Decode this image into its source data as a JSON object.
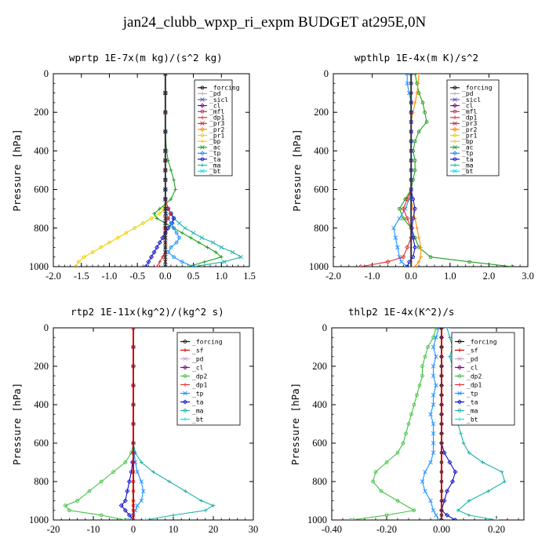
{
  "title": "jan24_clubb_wpxp_ri_expm  BUDGET at295E,0N",
  "colors": {
    "_forcing": "#111111",
    "_pd": "#c8a2c8",
    "_sicl": "#5555cc",
    "_cl": "#800080",
    "_mfl": "#b03060",
    "_dp1": "#e03030",
    "_dp2": "#40c040",
    "_pr3": "#d03040",
    "_pr2": "#ff8c00",
    "_pr1": "#f0d000",
    "_bp": "#f0c040",
    "_ac": "#20a020",
    "_tp": "#1e90ff",
    "_ta": "#1010cc",
    "_ma": "#20b2aa",
    "_bt": "#00e5ee",
    "_sf": "#cc0000"
  },
  "chart_data": [
    {
      "type": "line",
      "title": "wprtp  1E-7x(m kg)/(s^2 kg)",
      "ylabel": "Pressure [hPa]",
      "xlim": [
        -2.0,
        1.5
      ],
      "ylim": [
        1000,
        0
      ],
      "xticks": [
        "-2.0",
        "-1.5",
        "-1.0",
        "-0.5",
        "0.0",
        "0.5",
        "1.0",
        "1.5"
      ],
      "yticks": [
        "0",
        "200",
        "400",
        "600",
        "800",
        "1000"
      ],
      "legend": [
        "_forcing",
        "_pd",
        "_sicl",
        "_cl",
        "_mfl",
        "_dp1",
        "_pr3",
        "_pr2",
        "_pr1",
        "_bp",
        "_ac",
        "_tp",
        "_ta",
        "_ma",
        "_bt"
      ],
      "y": [
        0,
        100,
        200,
        300,
        400,
        450,
        500,
        550,
        600,
        650,
        700,
        725,
        750,
        775,
        800,
        825,
        850,
        875,
        900,
        925,
        950,
        975,
        1000
      ],
      "series": [
        {
          "name": "_pr1",
          "values": [
            0,
            0,
            0,
            0,
            0,
            0,
            0,
            0,
            0,
            0,
            -0.02,
            -0.1,
            -0.25,
            -0.4,
            -0.55,
            -0.7,
            -0.85,
            -1.0,
            -1.15,
            -1.3,
            -1.45,
            -1.55,
            -1.6
          ]
        },
        {
          "name": "_ac",
          "values": [
            0,
            0,
            0,
            0,
            0.02,
            0.05,
            0.1,
            0.15,
            0.18,
            0.1,
            -0.1,
            -0.2,
            -0.15,
            0.0,
            0.15,
            0.3,
            0.45,
            0.6,
            0.75,
            0.9,
            1.0,
            0.7,
            0.4
          ]
        },
        {
          "name": "_ma",
          "values": [
            0,
            0,
            0,
            0,
            0,
            0,
            0,
            0,
            0,
            0,
            0.05,
            0.1,
            0.15,
            0.25,
            0.35,
            0.5,
            0.65,
            0.85,
            1.0,
            1.2,
            1.35,
            1.05,
            0.5
          ]
        },
        {
          "name": "_ta",
          "values": [
            0,
            0,
            0,
            0,
            0,
            0,
            0,
            0,
            0,
            0,
            0.05,
            0.1,
            0.15,
            0.12,
            0.05,
            0.0,
            -0.05,
            -0.1,
            -0.15,
            -0.2,
            -0.25,
            -0.3,
            -0.35
          ]
        },
        {
          "name": "_tp",
          "values": [
            0,
            0,
            0,
            0,
            0,
            0,
            0,
            0,
            0,
            0,
            0,
            0.02,
            0.05,
            0.1,
            0.15,
            0.2,
            0.25,
            0.2,
            0.1,
            0.05,
            0.15,
            0.3,
            0.5
          ]
        },
        {
          "name": "_dp1",
          "values": [
            0,
            0,
            0,
            0,
            0,
            0,
            0,
            0,
            0,
            0,
            0.05,
            0.1,
            0.05,
            0.0,
            -0.02,
            0,
            0,
            0,
            0,
            0,
            -0.05,
            -0.1,
            -0.15
          ]
        },
        {
          "name": "_forcing",
          "values": [
            0,
            0,
            0,
            0,
            0,
            0,
            0,
            0,
            0,
            0,
            0,
            0,
            0,
            0,
            0,
            0,
            0,
            0,
            0,
            0,
            0,
            0,
            0
          ]
        }
      ]
    },
    {
      "type": "line",
      "title": "wpthlp  1E-4x(m K)/s^2",
      "ylabel": "Pressure [hPa]",
      "xlim": [
        -2.0,
        3.0
      ],
      "ylim": [
        1000,
        0
      ],
      "xticks": [
        "-2.0",
        "-1.0",
        "0.0",
        "1.0",
        "2.0",
        "3.0"
      ],
      "yticks": [
        "0",
        "200",
        "400",
        "600",
        "800",
        "1000"
      ],
      "legend": [
        "_forcing",
        "_pd",
        "_sicl",
        "_cl",
        "_mfl",
        "_dp1",
        "_pr3",
        "_pr2",
        "_pr1",
        "_bp",
        "_ac",
        "_tp",
        "_ta",
        "_ma",
        "_bt"
      ],
      "y": [
        0,
        50,
        100,
        150,
        200,
        250,
        300,
        350,
        400,
        450,
        500,
        550,
        600,
        650,
        700,
        750,
        800,
        850,
        900,
        950,
        975,
        1000
      ],
      "series": [
        {
          "name": "_ac",
          "values": [
            0.1,
            0.15,
            0.2,
            0.3,
            0.35,
            0.4,
            0.2,
            0.1,
            0.05,
            0.1,
            0.1,
            0.05,
            0.0,
            -0.15,
            -0.3,
            -0.2,
            0.0,
            0.1,
            0.2,
            0.5,
            1.5,
            2.6
          ]
        },
        {
          "name": "_pr2",
          "values": [
            0.2,
            0.18,
            0.15,
            0.1,
            0.05,
            0,
            0,
            0,
            0,
            0,
            0,
            0,
            0,
            0,
            0.05,
            0.1,
            0.15,
            0.2,
            0.25,
            0.25,
            0.2,
            0.1
          ]
        },
        {
          "name": "_tp",
          "values": [
            -0.1,
            -0.1,
            -0.05,
            0,
            0,
            0,
            0,
            0,
            0,
            0,
            0,
            0,
            0,
            -0.05,
            -0.15,
            -0.3,
            -0.45,
            -0.4,
            -0.35,
            -0.3,
            -0.25,
            -0.1
          ]
        },
        {
          "name": "_dp1",
          "values": [
            0,
            0,
            0,
            0,
            0,
            0,
            0,
            0,
            0,
            0,
            0,
            0,
            0,
            -0.1,
            -0.2,
            -0.1,
            0,
            0,
            -0.1,
            -0.2,
            -0.6,
            -1.3
          ]
        },
        {
          "name": "_ta",
          "values": [
            0,
            0,
            0,
            0,
            0,
            0,
            0,
            0,
            0,
            0,
            0,
            0,
            0,
            0.05,
            0.1,
            0.05,
            0.02,
            0.05,
            0.1,
            0.05,
            -0.05,
            -0.1
          ]
        },
        {
          "name": "_pd",
          "values": [
            0,
            0,
            0,
            0,
            0,
            0,
            0,
            0,
            0,
            0,
            0,
            0,
            0,
            0,
            0,
            0,
            0,
            0,
            0,
            0,
            0,
            0
          ]
        }
      ]
    },
    {
      "type": "line",
      "title": "rtp2  1E-11x(kg^2)/(kg^2 s)",
      "ylabel": "Pressure [hPa]",
      "xlim": [
        -20,
        30
      ],
      "ylim": [
        1000,
        0
      ],
      "xticks": [
        "-20",
        "-10",
        "0",
        "10",
        "20",
        "30"
      ],
      "yticks": [
        "0",
        "200",
        "400",
        "600",
        "800",
        "1000"
      ],
      "legend": [
        "_forcing",
        "_sf",
        "_pd",
        "_cl",
        "_dp2",
        "_dp1",
        "_tp",
        "_ta",
        "_ma",
        "_bt"
      ],
      "y": [
        0,
        100,
        200,
        300,
        400,
        500,
        600,
        650,
        700,
        750,
        800,
        850,
        900,
        925,
        950,
        975,
        1000
      ],
      "series": [
        {
          "name": "_dp2",
          "values": [
            0,
            0,
            0,
            0,
            0,
            0,
            0,
            -0.5,
            -2,
            -5,
            -8,
            -11,
            -14,
            -17,
            -16,
            -8,
            -2
          ]
        },
        {
          "name": "_ma",
          "values": [
            0,
            0,
            0,
            0,
            0,
            0,
            0,
            0.5,
            2,
            5,
            9,
            13,
            17,
            20,
            18,
            10,
            3
          ]
        },
        {
          "name": "_tp",
          "values": [
            0,
            0,
            0,
            0,
            0,
            0,
            0,
            0.2,
            0.5,
            1,
            2,
            2.5,
            2,
            1,
            0.5,
            0,
            -1
          ]
        },
        {
          "name": "_ta",
          "values": [
            0,
            0,
            0,
            0,
            0,
            0,
            0,
            0,
            -0.2,
            -0.5,
            -1,
            -1.5,
            -2,
            -3,
            -2,
            -1,
            0
          ]
        },
        {
          "name": "_dp1",
          "values": [
            0,
            0,
            0,
            0,
            0,
            0,
            0,
            0,
            0,
            0,
            0,
            0,
            0,
            0,
            0,
            0,
            0
          ]
        }
      ]
    },
    {
      "type": "line",
      "title": "thlp2  1E-4x(K^2)/s",
      "ylabel": "Pressure [hPa]",
      "xlim": [
        -0.4,
        0.3
      ],
      "ylim": [
        1000,
        0
      ],
      "xticks": [
        "-0.40",
        "-0.20",
        "0.00",
        "0.20"
      ],
      "yticks": [
        "0",
        "200",
        "400",
        "600",
        "800",
        "1000"
      ],
      "legend": [
        "_forcing",
        "_sf",
        "_pd",
        "_cl",
        "_dp2",
        "_dp1",
        "_tp",
        "_ta",
        "_ma",
        "_bt"
      ],
      "y": [
        0,
        50,
        100,
        150,
        200,
        250,
        300,
        350,
        400,
        450,
        500,
        550,
        600,
        650,
        700,
        750,
        800,
        850,
        900,
        950,
        975,
        1000
      ],
      "series": [
        {
          "name": "_dp2",
          "values": [
            -0.02,
            -0.03,
            -0.05,
            -0.06,
            -0.07,
            -0.07,
            -0.08,
            -0.09,
            -0.1,
            -0.11,
            -0.12,
            -0.13,
            -0.14,
            -0.16,
            -0.2,
            -0.24,
            -0.25,
            -0.22,
            -0.16,
            -0.1,
            -0.2,
            -0.33
          ]
        },
        {
          "name": "_ma",
          "values": [
            0.02,
            0.03,
            0.04,
            0.03,
            0.04,
            0.05,
            0.04,
            0.05,
            0.06,
            0.07,
            0.06,
            0.07,
            0.08,
            0.1,
            0.15,
            0.22,
            0.23,
            0.17,
            0.1,
            0.06,
            0.1,
            0.2
          ]
        },
        {
          "name": "_tp",
          "values": [
            -0.01,
            -0.02,
            -0.03,
            -0.02,
            -0.03,
            -0.03,
            -0.02,
            -0.03,
            -0.03,
            -0.04,
            -0.03,
            -0.03,
            -0.03,
            -0.03,
            -0.04,
            -0.06,
            -0.07,
            -0.06,
            -0.04,
            -0.03,
            -0.02,
            -0.01
          ]
        },
        {
          "name": "_ta",
          "values": [
            0,
            0,
            0,
            0,
            0,
            0,
            0,
            0,
            0,
            0,
            0,
            0,
            0,
            0.01,
            0.03,
            0.05,
            0.04,
            0.02,
            0.01,
            0.0,
            0.02,
            0.05
          ]
        },
        {
          "name": "_forcing",
          "values": [
            0,
            0,
            0,
            0,
            0,
            0,
            0,
            0,
            0,
            0,
            0,
            0,
            0,
            0,
            0,
            0,
            0,
            0,
            0,
            0,
            0,
            0
          ]
        }
      ]
    }
  ]
}
